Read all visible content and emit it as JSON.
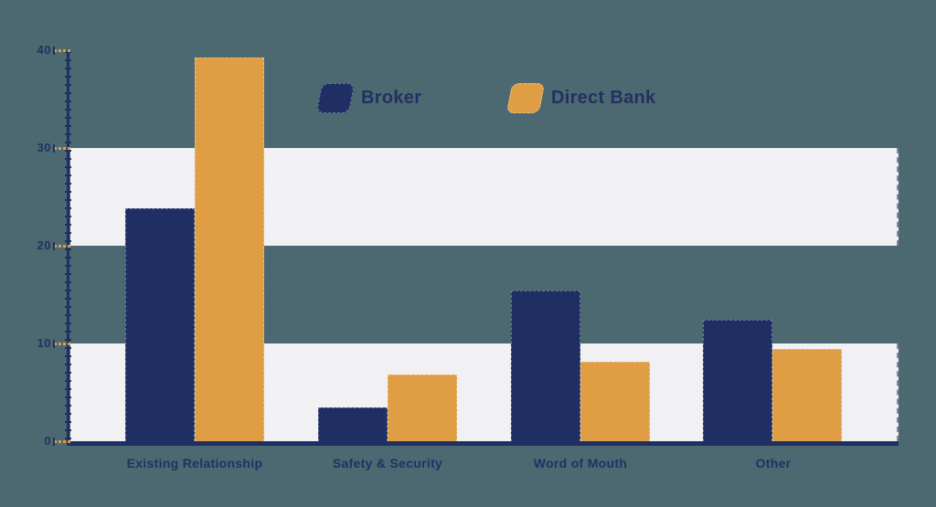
{
  "colors": {
    "background": "#4c6871",
    "band": "#f1f1f4",
    "navy": "#202f63",
    "orange": "#e09e44",
    "text": "#233063"
  },
  "legend": {
    "items": [
      {
        "label": "Broker",
        "swatch_color": "#202f63"
      },
      {
        "label": "Direct Bank",
        "swatch_color": "#e09e44"
      }
    ]
  },
  "chart_data": {
    "type": "bar",
    "title": "",
    "xlabel": "",
    "ylabel": "",
    "categories": [
      "Existing Relationship",
      "Safety & Security",
      "Word of Mouth",
      "Other"
    ],
    "series": [
      {
        "name": "Broker",
        "color": "#202f63",
        "values": [
          23.8,
          3.5,
          15.4,
          12.4
        ]
      },
      {
        "name": "Direct Bank",
        "color": "#e09e44",
        "values": [
          39.3,
          6.8,
          8.1,
          9.4
        ]
      }
    ],
    "ylim": [
      0,
      40
    ],
    "yticks": [
      "0",
      "10",
      "20",
      "30",
      "40"
    ],
    "grid": "alternating horizontal bands (0-10 and 20-30 highlighted)",
    "legend_position": "top-center"
  }
}
